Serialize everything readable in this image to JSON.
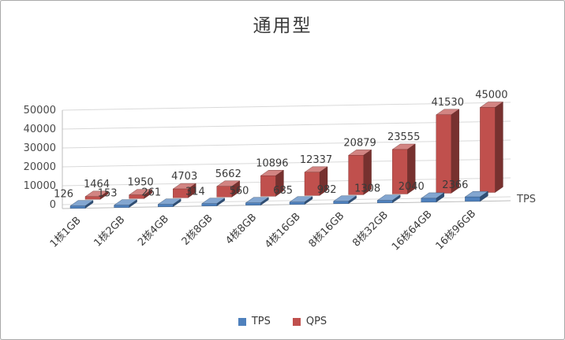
{
  "chart_data": {
    "type": "bar",
    "style": "3d-column",
    "title": "通用型",
    "categories": [
      "1核1GB",
      "1核2GB",
      "2核4GB",
      "2核8GB",
      "4核8GB",
      "4核16GB",
      "8核16GB",
      "8核32GB",
      "16核64GB",
      "16核96GB"
    ],
    "series": [
      {
        "name": "TPS",
        "color": "#4F81BD",
        "values": [
          126,
          153,
          261,
          314,
          560,
          685,
          982,
          1308,
          2040,
          2366
        ]
      },
      {
        "name": "QPS",
        "color": "#C0504D",
        "values": [
          1464,
          1950,
          4703,
          5662,
          10896,
          12337,
          20879,
          23555,
          41530,
          45000
        ]
      }
    ],
    "ylim": [
      0,
      50000
    ],
    "yticks": [
      0,
      10000,
      20000,
      30000,
      40000,
      50000
    ],
    "depth_axis_label": "TPS",
    "legend_position": "bottom",
    "grid": true,
    "data_labels": true,
    "grid_color": "#d9d9d9",
    "axis_color": "#bdbdbd"
  }
}
